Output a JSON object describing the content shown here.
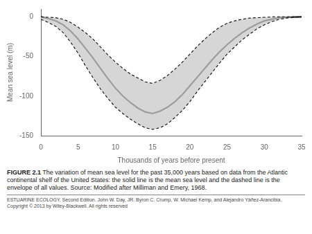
{
  "chart_data": {
    "type": "line",
    "xlabel": "Thousands of years before present",
    "ylabel": "Mean sea level (m)",
    "x": [
      0,
      1,
      2,
      3,
      4,
      5,
      6,
      7,
      8,
      9,
      10,
      11,
      12,
      13,
      14,
      15,
      16,
      17,
      18,
      19,
      20,
      21,
      22,
      23,
      24,
      25,
      26,
      27,
      28,
      29,
      30,
      31,
      32,
      33,
      34,
      35
    ],
    "series": [
      {
        "values": [
          0,
          -0.5,
          -1,
          -3,
          -7,
          -13,
          -20,
          -28,
          -38,
          -48,
          -57,
          -65,
          -72,
          -77,
          -82,
          -84,
          -80,
          -74,
          -66,
          -57,
          -47,
          -37,
          -28,
          -20,
          -13,
          -8,
          -5,
          -3,
          -1.5,
          -1,
          -0.5,
          0,
          0,
          0,
          0,
          0
        ],
        "color": "#1a1a1a",
        "line_style": "dashed"
      },
      {
        "values": [
          -3,
          -7,
          -12,
          -20,
          -32,
          -46,
          -62,
          -77,
          -91,
          -103,
          -114,
          -122,
          -129,
          -135,
          -140,
          -142,
          -140,
          -135,
          -127,
          -118,
          -107,
          -94,
          -82,
          -70,
          -58,
          -47,
          -38,
          -29,
          -22,
          -15,
          -10,
          -6,
          -3,
          -1.5,
          -0.5,
          0
        ],
        "color": "#1a1a1a",
        "line_style": "dashed"
      },
      {
        "values": [
          0,
          -2,
          -5,
          -10,
          -18,
          -28,
          -40,
          -52,
          -65,
          -78,
          -90,
          -100,
          -108,
          -115,
          -120,
          -122,
          -119,
          -114,
          -107,
          -98,
          -87,
          -76,
          -65,
          -54,
          -44,
          -35,
          -27,
          -20,
          -14,
          -9,
          -5,
          -3,
          -1,
          -0.5,
          -0.2,
          0
        ],
        "color": "#1a1a1a",
        "line_style": "solid"
      }
    ],
    "xlim": [
      0,
      35
    ],
    "ylim": [
      -150,
      10
    ],
    "xticks": [
      0,
      5,
      10,
      15,
      20,
      25,
      30,
      35
    ],
    "yticks": [
      0,
      -50,
      -100,
      -150
    ],
    "grid": false,
    "annotations": [
      "FIGURE 2.1",
      "The variation of mean sea level for the past 35,000 years based on data from the Atlantic continental shelf of the United States: the solid line is the mean sea level and the dashed line is the envelope of all values. Source: Modified after Milliman and Emery, 1968.",
      "ESTUARINE ECOLOGY, Second Edition. John W. Day, JR. Byron C. Crump, W. Michael Kemp, and Alejandro Yáñez-Arancibia.\nCopyright © 2013 by Wiley-Blackwell. All rights reserved"
    ]
  }
}
